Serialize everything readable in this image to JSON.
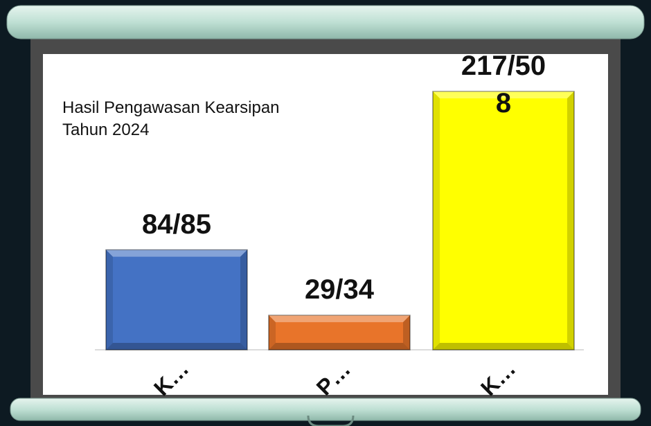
{
  "chart_data": {
    "type": "bar",
    "title": "Hasil Pengawasan Kearsipan Tahun 2024",
    "categories": [
      "K…",
      "P…",
      "K…"
    ],
    "values": [
      84,
      29,
      217
    ],
    "value_labels": [
      "84/85",
      "29/34",
      "217/508"
    ],
    "colors": [
      "#4472c4",
      "#e8742a",
      "#ffff00"
    ]
  }
}
